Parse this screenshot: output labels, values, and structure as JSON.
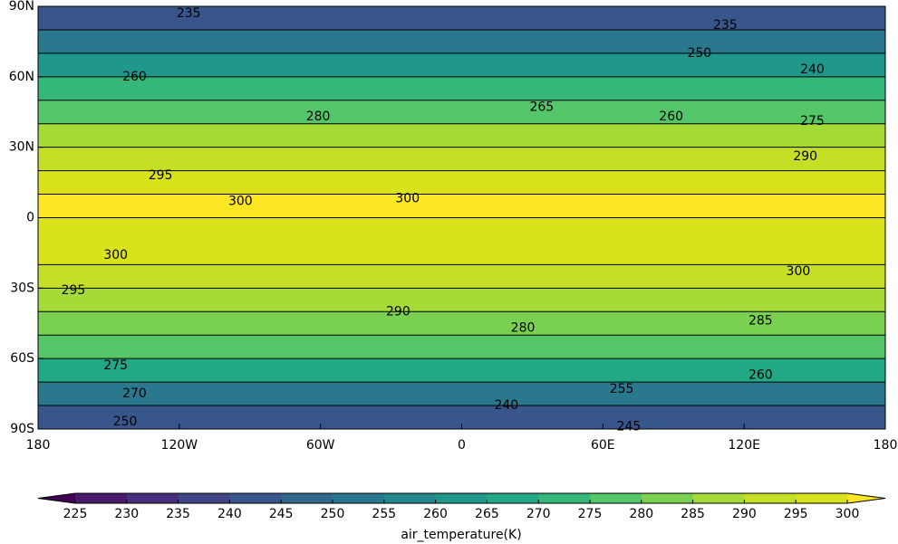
{
  "chart_data": {
    "type": "filled_contour_map",
    "xlim": [
      -180,
      180
    ],
    "ylim": [
      -90,
      90
    ],
    "xticks": [
      {
        "value": -180,
        "label": "180"
      },
      {
        "value": -120,
        "label": "120W"
      },
      {
        "value": -60,
        "label": "60W"
      },
      0,
      {
        "value": 60,
        "label": "60E"
      },
      {
        "value": 120,
        "label": "120E"
      },
      {
        "value": 180,
        "label": "180"
      }
    ],
    "yticks": [
      {
        "value": 90,
        "label": "90N"
      },
      {
        "value": 60,
        "label": "60N"
      },
      {
        "value": 30,
        "label": "30N"
      },
      0,
      {
        "value": -30,
        "label": "30S"
      },
      {
        "value": -60,
        "label": "60S"
      },
      {
        "value": -90,
        "label": "90S"
      }
    ],
    "zonal_field": {
      "lat": [
        90,
        80,
        70,
        60,
        50,
        40,
        30,
        20,
        10,
        0,
        -10,
        -20,
        -30,
        -40,
        -50,
        -60,
        -70,
        -80,
        -90
      ],
      "temperature": [
        237,
        245,
        258,
        268,
        276,
        283,
        292,
        297,
        300,
        300,
        299,
        296,
        292,
        286,
        279,
        272,
        260,
        245,
        240
      ]
    },
    "contour_labels": [
      {
        "value": 235,
        "lon": -116,
        "lat": 87
      },
      {
        "value": 235,
        "lon": 112,
        "lat": 82
      },
      {
        "value": 250,
        "lon": 101,
        "lat": 70
      },
      {
        "value": 240,
        "lon": 149,
        "lat": 63
      },
      {
        "value": 260,
        "lon": -139,
        "lat": 60
      },
      {
        "value": 280,
        "lon": -61,
        "lat": 43
      },
      {
        "value": 265,
        "lon": 34,
        "lat": 47
      },
      {
        "value": 260,
        "lon": 89,
        "lat": 43
      },
      {
        "value": 275,
        "lon": 149,
        "lat": 41
      },
      {
        "value": 290,
        "lon": 146,
        "lat": 26
      },
      {
        "value": 295,
        "lon": -128,
        "lat": 18
      },
      {
        "value": 300,
        "lon": -94,
        "lat": 7
      },
      {
        "value": 300,
        "lon": -23,
        "lat": 8
      },
      {
        "value": 300,
        "lon": -147,
        "lat": -16
      },
      {
        "value": 300,
        "lon": 143,
        "lat": -23
      },
      {
        "value": 295,
        "lon": -165,
        "lat": -31
      },
      {
        "value": 290,
        "lon": -27,
        "lat": -40
      },
      {
        "value": 285,
        "lon": 127,
        "lat": -44
      },
      {
        "value": 280,
        "lon": 26,
        "lat": -47
      },
      {
        "value": 275,
        "lon": -147,
        "lat": -63
      },
      {
        "value": 260,
        "lon": 127,
        "lat": -67
      },
      {
        "value": 255,
        "lon": 68,
        "lat": -73
      },
      {
        "value": 270,
        "lon": -139,
        "lat": -75
      },
      {
        "value": 240,
        "lon": 19,
        "lat": -80
      },
      {
        "value": 250,
        "lon": -143,
        "lat": -87
      },
      {
        "value": 245,
        "lon": 71,
        "lat": -89
      }
    ],
    "colorbar": {
      "label": "air_temperature(K)",
      "ticks": [
        225,
        230,
        235,
        240,
        245,
        250,
        255,
        260,
        265,
        270,
        275,
        280,
        285,
        290,
        295,
        300
      ],
      "extend": "both",
      "colors": [
        "#440154",
        "#481a6c",
        "#472f7d",
        "#414487",
        "#39568c",
        "#31688e",
        "#2a788e",
        "#23888e",
        "#1f988b",
        "#22a884",
        "#35b779",
        "#54c568",
        "#7ad151",
        "#a5db36",
        "#c4df25",
        "#d9e21a",
        "#fde725"
      ]
    }
  }
}
